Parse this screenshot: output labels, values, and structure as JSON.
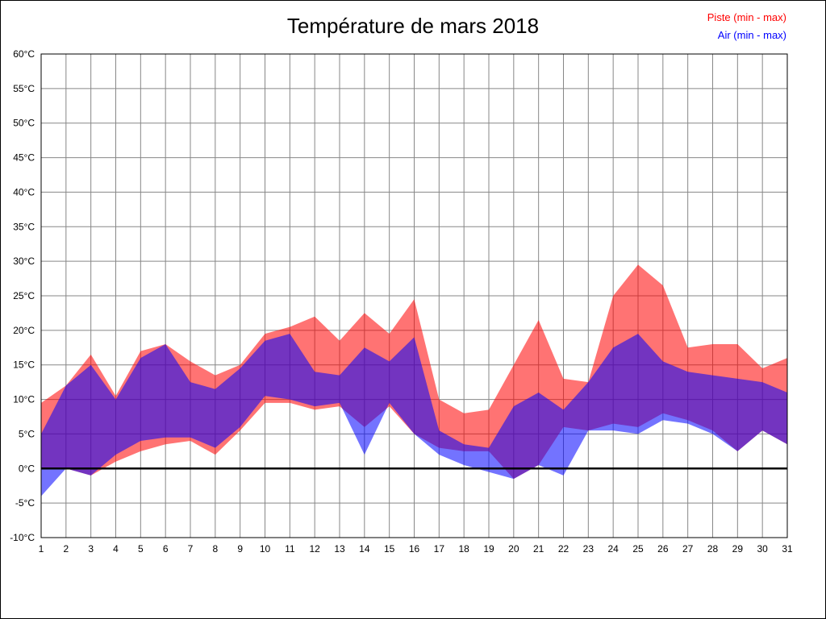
{
  "chart_data": {
    "type": "area",
    "title": "Température de mars 2018",
    "legend": [
      {
        "label": "Piste (min - max)",
        "color": "#ff0000"
      },
      {
        "label": "Air (min - max)",
        "color": "#0000ff"
      }
    ],
    "band_opacity": 0.55,
    "grid_color": "#878787",
    "zero_line_color": "#000000",
    "y_unit": "°C",
    "ylim": [
      -10,
      60
    ],
    "ytick_step": 5,
    "yticks": [
      -10,
      -5,
      0,
      5,
      10,
      15,
      20,
      25,
      30,
      35,
      40,
      45,
      50,
      55,
      60
    ],
    "x": [
      1,
      2,
      3,
      4,
      5,
      6,
      7,
      8,
      9,
      10,
      11,
      12,
      13,
      14,
      15,
      16,
      17,
      18,
      19,
      20,
      21,
      22,
      23,
      24,
      25,
      26,
      27,
      28,
      29,
      30,
      31
    ],
    "series": [
      {
        "name": "piste_min",
        "values": [
          0,
          0,
          -1,
          1,
          2.5,
          3.5,
          4,
          2,
          5.5,
          9.5,
          9.5,
          8.5,
          9,
          6,
          9,
          5,
          3,
          2.5,
          2.5,
          -1.5,
          0.5,
          6,
          5.5,
          6.5,
          6,
          8,
          7,
          5.5,
          2.5,
          5.5,
          3.5
        ]
      },
      {
        "name": "piste_max",
        "values": [
          9.5,
          12,
          16.5,
          10.5,
          17,
          18,
          15.5,
          13.5,
          15,
          19.5,
          20.5,
          22,
          18.5,
          22.5,
          19.5,
          24.5,
          10,
          8,
          8.5,
          15,
          21.5,
          13,
          12.5,
          25,
          29.5,
          26.5,
          17.5,
          18,
          18,
          14.5,
          16
        ]
      },
      {
        "name": "air_min",
        "values": [
          -4,
          0,
          -1,
          2,
          4,
          4.5,
          4.5,
          3,
          6,
          10.5,
          10,
          9,
          9.5,
          2,
          9.5,
          5,
          2,
          0.5,
          -0.5,
          -1.5,
          0.5,
          -1,
          5.5,
          5.5,
          5,
          7,
          6.5,
          5,
          2.5,
          5.5,
          3.5
        ]
      },
      {
        "name": "air_max",
        "values": [
          5,
          12,
          15,
          10,
          16,
          18,
          12.5,
          11.5,
          14.5,
          18.5,
          19.5,
          14,
          13.5,
          17.5,
          15.5,
          19,
          5.5,
          3.5,
          3,
          9,
          11,
          8.5,
          12.5,
          17.5,
          19.5,
          15.5,
          14,
          13.5,
          13,
          12.5,
          11
        ]
      }
    ]
  }
}
